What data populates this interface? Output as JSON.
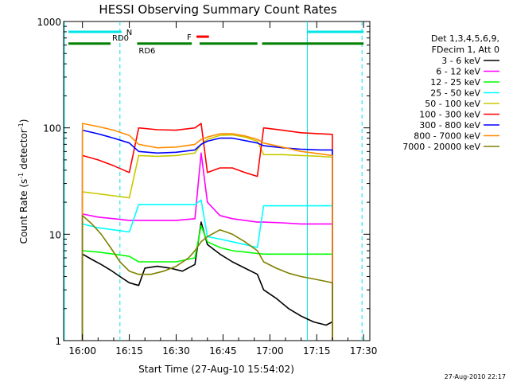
{
  "chart_data": {
    "type": "line",
    "title": "HESSI Observing Summary Count Rates",
    "xlabel": "Start Time (27-Aug-10 15:54:02)",
    "ylabel_main": "Count Rate (s",
    "ylabel_sup1": "-1",
    "ylabel_mid": " detector",
    "ylabel_sup2": "-1",
    "ylabel_end": ")",
    "y_scale": "log",
    "ylim": [
      1,
      1000
    ],
    "xlim_minutes": [
      -6.03,
      92
    ],
    "x_ticks": [
      {
        "label": "16:00",
        "t": 0
      },
      {
        "label": "16:15",
        "t": 15
      },
      {
        "label": "16:30",
        "t": 30
      },
      {
        "label": "16:45",
        "t": 45
      },
      {
        "label": "17:00",
        "t": 60
      },
      {
        "label": "17:15",
        "t": 75
      },
      {
        "label": "17:30",
        "t": 90
      }
    ],
    "y_ticks": [
      {
        "label": "1",
        "v": 1
      },
      {
        "label": "10",
        "v": 10
      },
      {
        "label": "100",
        "v": 100
      },
      {
        "label": "1000",
        "v": 1000
      }
    ],
    "legend_header": [
      "Det 1,3,4,5,6,9,",
      "FDecim 1, Att 0"
    ],
    "legend_position": "right",
    "timestamp": "27-Aug-2010 22:17",
    "flags": [
      {
        "label": "N",
        "color": "#00e5e5",
        "segments": [
          [
            -4.5,
            12.5
          ],
          [
            72,
            90
          ]
        ],
        "level": 800
      },
      {
        "label": "RD0",
        "color": "#008000",
        "segments": [
          [
            -4.5,
            9
          ]
        ],
        "level": 620
      },
      {
        "label": "RD6",
        "color": "#008000",
        "segments": [
          [
            17.5,
            35
          ],
          [
            37.5,
            56
          ],
          [
            57.5,
            90
          ]
        ],
        "level": 620
      },
      {
        "label": "F",
        "color": "#ff0000",
        "segments": [
          [
            36.5,
            40.5
          ]
        ],
        "level": 720
      }
    ],
    "dashed_lines_minutes": [
      12,
      89.5
    ],
    "solid_lines_minutes": [
      -5.8,
      72
    ],
    "series": [
      {
        "name": "3 - 6 keV",
        "color": "#000000",
        "x": [
          0,
          3,
          6,
          9,
          12,
          15,
          18,
          20,
          24,
          28,
          32,
          36,
          38,
          40,
          44,
          48,
          52,
          56,
          58,
          62,
          66,
          70,
          74,
          78,
          80
        ],
        "y": [
          6.5,
          5.8,
          5.2,
          4.6,
          4.0,
          3.5,
          3.3,
          4.8,
          5.0,
          4.8,
          4.5,
          5.2,
          13,
          8.0,
          6.5,
          5.5,
          4.8,
          4.2,
          3.0,
          2.5,
          2.0,
          1.7,
          1.5,
          1.4,
          1.5
        ]
      },
      {
        "name": "6 - 12 keV",
        "color": "#ff00ff",
        "x": [
          0,
          5,
          10,
          15,
          18,
          24,
          30,
          36,
          38,
          40,
          44,
          48,
          52,
          56,
          58,
          64,
          70,
          76,
          80
        ],
        "y": [
          15.5,
          14.5,
          14.0,
          13.5,
          13.5,
          13.5,
          13.5,
          14,
          58,
          20,
          15,
          14,
          13.5,
          13,
          13,
          12.8,
          12.5,
          12.5,
          12.5
        ]
      },
      {
        "name": "12 - 25 keV",
        "color": "#00ff00",
        "x": [
          0,
          5,
          10,
          15,
          18,
          24,
          30,
          36,
          38,
          40,
          44,
          48,
          52,
          56,
          58,
          64,
          70,
          76,
          80
        ],
        "y": [
          7.0,
          6.8,
          6.5,
          6.2,
          5.5,
          5.5,
          5.5,
          6.0,
          12,
          8.5,
          7.5,
          7.0,
          6.8,
          6.6,
          6.5,
          6.5,
          6.5,
          6.5,
          6.5
        ]
      },
      {
        "name": "25 - 50 keV",
        "color": "#00ffff",
        "x": [
          0,
          5,
          10,
          15,
          18,
          24,
          30,
          36,
          38,
          40,
          44,
          48,
          52,
          56,
          58,
          64,
          70,
          76,
          80
        ],
        "y": [
          12.5,
          11.5,
          11.0,
          10.5,
          19,
          19,
          19,
          19,
          21,
          9.5,
          9.0,
          8.5,
          8.0,
          7.5,
          18.5,
          18.5,
          18.5,
          18.5,
          18.5
        ]
      },
      {
        "name": "50 - 100 keV",
        "color": "#c8c800",
        "x": [
          0,
          5,
          10,
          15,
          18,
          24,
          30,
          36,
          38,
          40,
          44,
          48,
          52,
          56,
          58,
          64,
          70,
          76,
          80
        ],
        "y": [
          25,
          24,
          23,
          22,
          55,
          54,
          55,
          58,
          70,
          78,
          85,
          86,
          82,
          75,
          56,
          56,
          55,
          54,
          53
        ]
      },
      {
        "name": "100 - 300 keV",
        "color": "#ff0000",
        "x": [
          0,
          5,
          10,
          15,
          18,
          24,
          30,
          36,
          38,
          40,
          44,
          48,
          52,
          56,
          58,
          64,
          70,
          76,
          80
        ],
        "y": [
          55,
          50,
          44,
          38,
          100,
          96,
          95,
          100,
          110,
          38,
          42,
          42,
          38,
          35,
          100,
          95,
          90,
          88,
          87
        ]
      },
      {
        "name": "300 - 800 keV",
        "color": "#0000ff",
        "x": [
          0,
          5,
          10,
          15,
          18,
          24,
          30,
          36,
          38,
          40,
          44,
          48,
          52,
          56,
          58,
          64,
          70,
          76,
          80
        ],
        "y": [
          95,
          88,
          80,
          72,
          60,
          58,
          59,
          62,
          70,
          75,
          80,
          80,
          76,
          72,
          68,
          65,
          63,
          62,
          62
        ]
      },
      {
        "name": "800 - 7000 keV",
        "color": "#ff8c00",
        "x": [
          0,
          5,
          10,
          15,
          18,
          24,
          30,
          36,
          38,
          40,
          44,
          48,
          52,
          56,
          58,
          64,
          70,
          76,
          80
        ],
        "y": [
          110,
          103,
          95,
          85,
          70,
          65,
          66,
          70,
          78,
          82,
          88,
          88,
          84,
          78,
          72,
          66,
          60,
          57,
          55
        ]
      },
      {
        "name": "7000 - 20000 keV",
        "color": "#808000",
        "x": [
          0,
          3,
          6,
          9,
          12,
          15,
          18,
          22,
          26,
          30,
          34,
          36,
          38,
          40,
          44,
          48,
          52,
          56,
          58,
          62,
          66,
          70,
          74,
          78,
          80
        ],
        "y": [
          15,
          12.5,
          10,
          7.5,
          5.5,
          4.5,
          4.2,
          4.2,
          4.5,
          5.0,
          6.0,
          7.0,
          8.5,
          9.5,
          11,
          10,
          8.5,
          7.0,
          5.5,
          4.8,
          4.3,
          4.0,
          3.8,
          3.6,
          3.5
        ]
      }
    ]
  }
}
